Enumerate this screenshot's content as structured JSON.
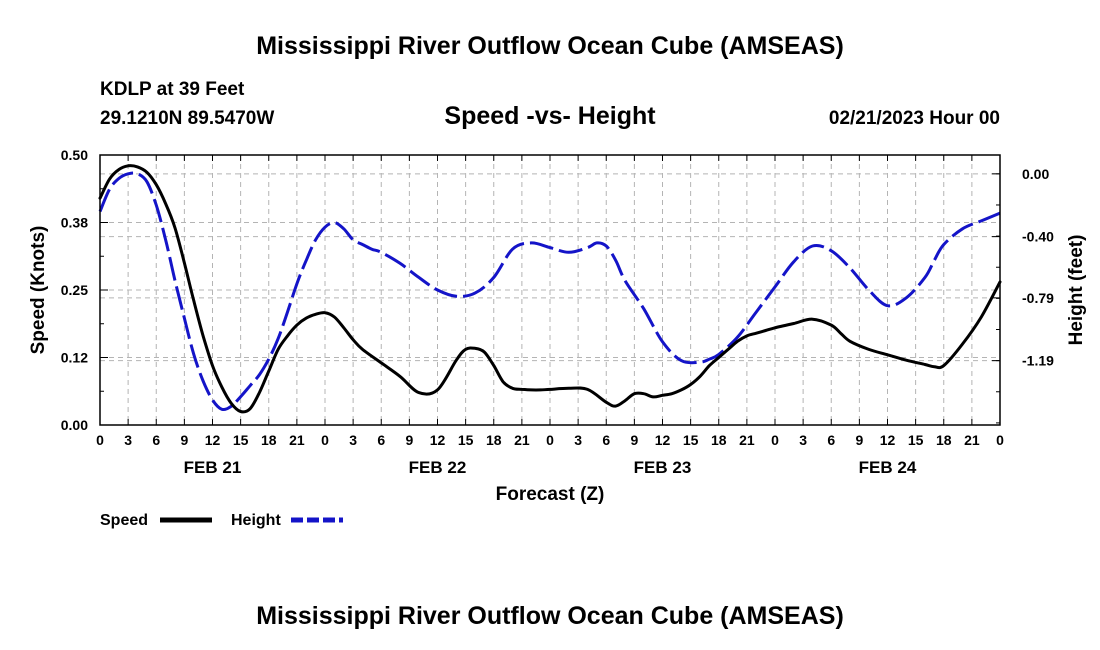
{
  "chart_data": {
    "type": "line",
    "title": "Mississippi River Outflow Ocean Cube (AMSEAS)",
    "footer_title": "Mississippi River Outflow Ocean Cube (AMSEAS)",
    "station": "KDLP at 39 Feet",
    "location": "29.1210N  89.5470W",
    "subtitle": "Speed -vs- Height",
    "date_label": "02/21/2023 Hour 00",
    "xlabel": "Forecast (Z)",
    "ylabel_left": "Speed (Knots)",
    "ylabel_right": "Height (feet)",
    "xlim": [
      0,
      96
    ],
    "ylim_left": [
      0,
      0.5
    ],
    "ylim_right": [
      -1.6,
      0.12
    ],
    "x_tick_labels": [
      "0",
      "3",
      "6",
      "9",
      "12",
      "15",
      "18",
      "21",
      "0",
      "3",
      "6",
      "9",
      "12",
      "15",
      "18",
      "21",
      "0",
      "3",
      "6",
      "9",
      "12",
      "15",
      "18",
      "21",
      "0",
      "3",
      "6",
      "9",
      "12",
      "15",
      "18",
      "21",
      "0"
    ],
    "day_labels": [
      {
        "label": "FEB 21",
        "x": 12
      },
      {
        "label": "FEB 22",
        "x": 36
      },
      {
        "label": "FEB 23",
        "x": 60
      },
      {
        "label": "FEB 24",
        "x": 84
      }
    ],
    "left_ticks": [
      {
        "label": "0.00",
        "value": 0.0
      },
      {
        "label": "0.12",
        "value": 0.125
      },
      {
        "label": "0.25",
        "value": 0.25
      },
      {
        "label": "0.38",
        "value": 0.375
      },
      {
        "label": "0.50",
        "value": 0.5
      }
    ],
    "right_ticks": [
      {
        "label": "0.00",
        "value": 0.0
      },
      {
        "label": "-0.40",
        "value": -0.4
      },
      {
        "label": "-0.79",
        "value": -0.79
      },
      {
        "label": "-1.19",
        "value": -1.19
      }
    ],
    "grid": true,
    "legend": [
      {
        "name": "Speed",
        "color": "#000000",
        "style": "solid"
      },
      {
        "name": "Height",
        "color": "#1414c8",
        "style": "dashed"
      }
    ],
    "series": [
      {
        "name": "Speed",
        "axis": "left",
        "color": "#000000",
        "style": "solid",
        "x": [
          0,
          1,
          2,
          3,
          4,
          5,
          6,
          7,
          8,
          9,
          10,
          11,
          12,
          13,
          14,
          15,
          16,
          17,
          18,
          19,
          20,
          21,
          22,
          23,
          24,
          25,
          26,
          27,
          28,
          30,
          32,
          34,
          36,
          38,
          39,
          40,
          41,
          42,
          43,
          44,
          45,
          46,
          47,
          48,
          50,
          52,
          54,
          55,
          56,
          57,
          58,
          59,
          60,
          61,
          62,
          63,
          64,
          65,
          66,
          67,
          68,
          69,
          70,
          71,
          72,
          74,
          76,
          78,
          79,
          80,
          82,
          84,
          86,
          88,
          89,
          90,
          92,
          94,
          96
        ],
        "values": [
          0.42,
          0.455,
          0.473,
          0.48,
          0.478,
          0.468,
          0.445,
          0.41,
          0.365,
          0.3,
          0.23,
          0.165,
          0.11,
          0.07,
          0.04,
          0.025,
          0.03,
          0.06,
          0.1,
          0.14,
          0.165,
          0.185,
          0.198,
          0.205,
          0.208,
          0.2,
          0.18,
          0.158,
          0.14,
          0.115,
          0.09,
          0.06,
          0.065,
          0.12,
          0.14,
          0.142,
          0.135,
          0.11,
          0.08,
          0.068,
          0.066,
          0.065,
          0.065,
          0.066,
          0.068,
          0.066,
          0.042,
          0.035,
          0.045,
          0.058,
          0.058,
          0.052,
          0.055,
          0.058,
          0.065,
          0.075,
          0.09,
          0.11,
          0.125,
          0.14,
          0.155,
          0.165,
          0.17,
          0.175,
          0.18,
          0.188,
          0.196,
          0.185,
          0.17,
          0.155,
          0.14,
          0.13,
          0.12,
          0.112,
          0.108,
          0.11,
          0.15,
          0.2,
          0.265
        ]
      },
      {
        "name": "Height",
        "axis": "right",
        "color": "#1414c8",
        "style": "dashed",
        "x": [
          0,
          1,
          2,
          3,
          4,
          5,
          6,
          7,
          8,
          9,
          10,
          11,
          12,
          13,
          14,
          15,
          16,
          17,
          18,
          19,
          20,
          21,
          22,
          23,
          24,
          25,
          26,
          27,
          28,
          29,
          30,
          32,
          34,
          36,
          38,
          40,
          42,
          44,
          46,
          48,
          50,
          52,
          53,
          54,
          55,
          56,
          58,
          60,
          62,
          64,
          65,
          66,
          68,
          70,
          72,
          74,
          76,
          78,
          80,
          82,
          84,
          86,
          88,
          89,
          90,
          92,
          94,
          96
        ],
        "values": [
          -0.24,
          -0.1,
          -0.03,
          0.0,
          0.0,
          -0.05,
          -0.2,
          -0.42,
          -0.68,
          -0.92,
          -1.15,
          -1.32,
          -1.44,
          -1.5,
          -1.48,
          -1.42,
          -1.35,
          -1.28,
          -1.18,
          -1.05,
          -0.88,
          -0.7,
          -0.55,
          -0.42,
          -0.34,
          -0.31,
          -0.35,
          -0.42,
          -0.45,
          -0.48,
          -0.5,
          -0.57,
          -0.66,
          -0.74,
          -0.78,
          -0.76,
          -0.66,
          -0.48,
          -0.44,
          -0.47,
          -0.5,
          -0.47,
          -0.44,
          -0.46,
          -0.55,
          -0.68,
          -0.86,
          -1.07,
          -1.19,
          -1.2,
          -1.18,
          -1.15,
          -1.04,
          -0.88,
          -0.72,
          -0.56,
          -0.46,
          -0.49,
          -0.6,
          -0.74,
          -0.84,
          -0.79,
          -0.66,
          -0.55,
          -0.45,
          -0.35,
          -0.3,
          -0.25
        ]
      }
    ]
  }
}
